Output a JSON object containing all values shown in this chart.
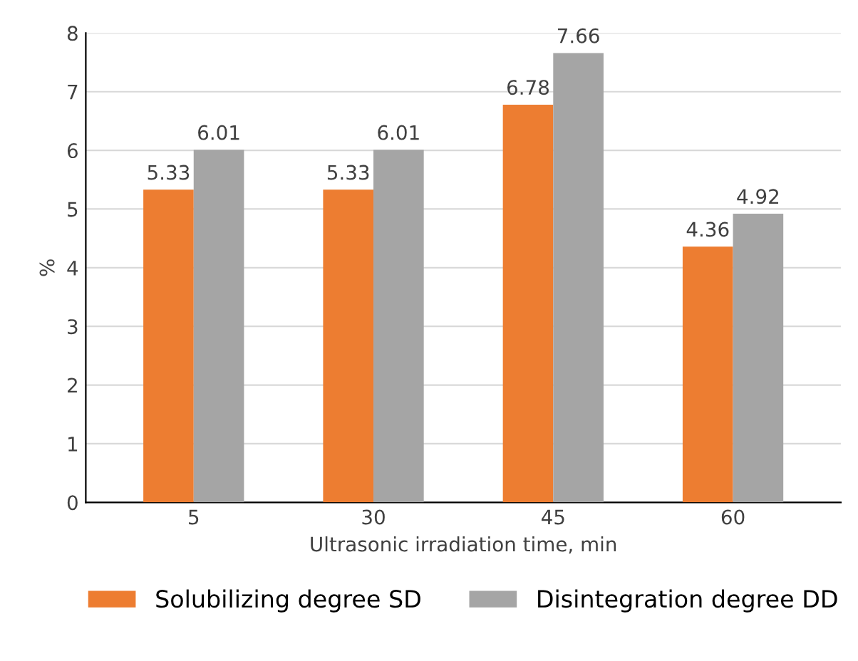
{
  "chart_data": {
    "type": "bar",
    "xlabel": "Ultrasonic irradiation time, min",
    "ylabel": "%",
    "categories": [
      "5",
      "30",
      "45",
      "60"
    ],
    "series": [
      {
        "name": "Solubilizing degree SD",
        "color": "#ed7d31",
        "values": [
          5.33,
          5.33,
          6.78,
          4.36
        ]
      },
      {
        "name": "Disintegration degree DD",
        "color": "#a5a5a5",
        "values": [
          6.01,
          6.01,
          7.66,
          4.92
        ]
      }
    ],
    "ylim": [
      0,
      8
    ],
    "yticks": [
      0,
      1,
      2,
      3,
      4,
      5,
      6,
      7,
      8
    ],
    "grid": "y",
    "legend": "bottom",
    "data_labels": true
  }
}
